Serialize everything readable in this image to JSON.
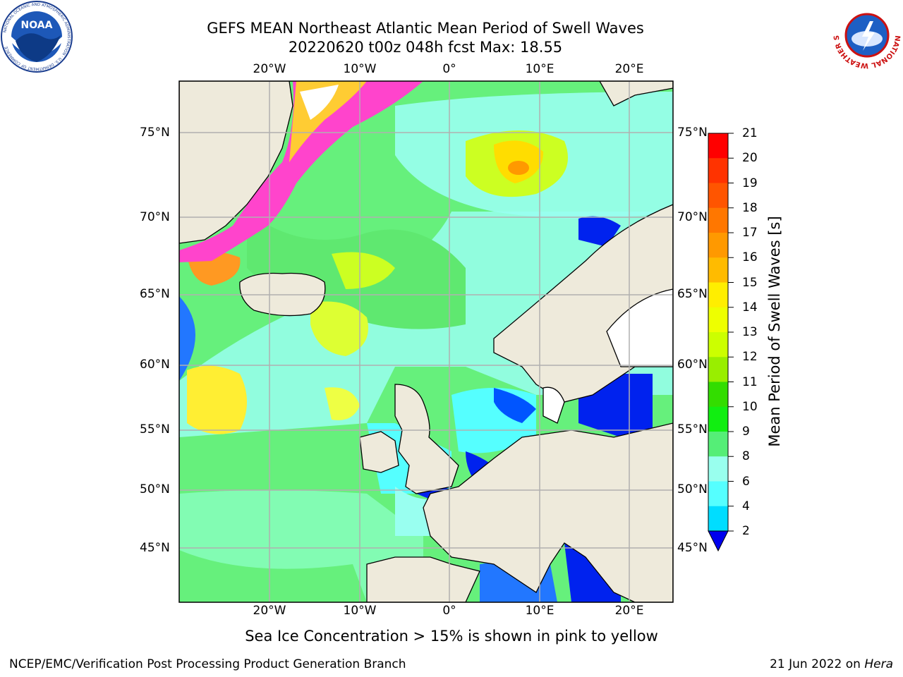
{
  "title_line1": "GEFS MEAN Northeast Atlantic Mean Period of Swell Waves",
  "title_line2": "20220620 t00z 048h fcst   Max: 18.55",
  "logos": {
    "left": {
      "name": "noaa-logo",
      "text": "NOAA",
      "ring_text": "NATIONAL OCEANIC AND ATMOSPHERIC ADMINISTRATION · U.S. DEPARTMENT OF COMMERCE"
    },
    "right": {
      "name": "national-weather-service-logo",
      "ring_text": "NATIONAL WEATHER SERVICE"
    }
  },
  "map": {
    "lon_labels": [
      "20°W",
      "10°W",
      "0°",
      "10°E",
      "20°E"
    ],
    "lat_labels": [
      "75°N",
      "70°N",
      "65°N",
      "60°N",
      "55°N",
      "50°N",
      "45°N"
    ],
    "land_color": "#eeeadb",
    "grid_color": "#b0b0b0"
  },
  "colorbar": {
    "label": "Mean Period of Swell Waves [s]",
    "ticks": [
      "21",
      "20",
      "19",
      "18",
      "17",
      "16",
      "15",
      "14",
      "13",
      "12",
      "11",
      "10",
      "9",
      "8",
      "6",
      "4",
      "2"
    ],
    "colors": [
      "#ff0000",
      "#ff3300",
      "#ff5500",
      "#ff7700",
      "#ff9900",
      "#ffbb00",
      "#ffee00",
      "#eeff00",
      "#ccff00",
      "#99ee00",
      "#33dd00",
      "#11ee11",
      "#55ee77",
      "#99ffee",
      "#55ffff",
      "#00ddff",
      "#0077ff"
    ],
    "extend_color": "#0000ee"
  },
  "note": "Sea Ice Concentration > 15% is shown in pink to yellow",
  "footer": {
    "left": "NCEP/EMC/Verification Post Processing Product Generation Branch",
    "right_prefix": "21 Jun 2022 on ",
    "right_italic": "Hera"
  }
}
